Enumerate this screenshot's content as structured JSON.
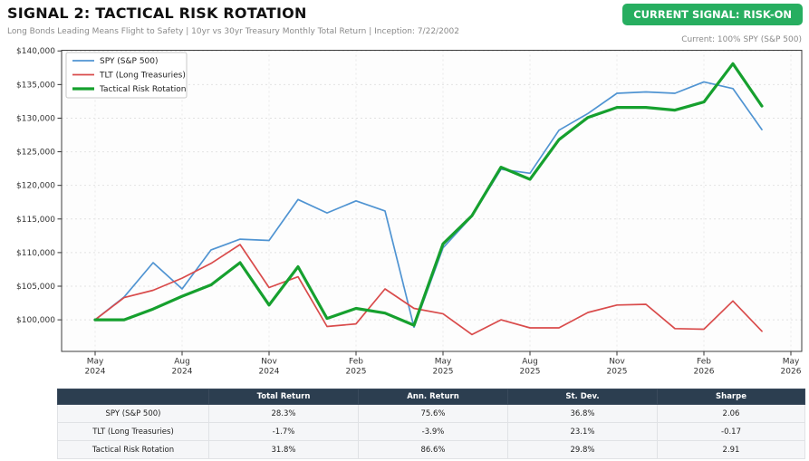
{
  "header": {
    "title": "SIGNAL 2: TACTICAL RISK ROTATION",
    "subtitle": "Long Bonds Leading Means Flight to Safety | 10yr vs 30yr Treasury Monthly Total Return | Inception: 7/22/2002",
    "badge": "CURRENT SIGNAL: RISK-ON",
    "badge_color": "#27ae60",
    "current_note": "Current: 100% SPY (S&P 500)"
  },
  "chart_data": {
    "type": "line",
    "x": [
      "May 2024",
      "Jun 2024",
      "Jul 2024",
      "Aug 2024",
      "Sep 2024",
      "Oct 2024",
      "Nov 2024",
      "Dec 2024",
      "Jan 2025",
      "Feb 2025",
      "Mar 2025",
      "Apr 2025",
      "May 2025",
      "Jun 2025",
      "Jul 2025",
      "Aug 2025",
      "Sep 2025",
      "Oct 2025",
      "Nov 2025",
      "Dec 2025",
      "Jan 2026",
      "Feb 2026",
      "Mar 2026",
      "Apr 2026"
    ],
    "series": [
      {
        "name": "SPY (S&P 500)",
        "color": "#5094d2",
        "width": 1.7,
        "values": [
          100000,
          103400,
          108500,
          104600,
          110400,
          112000,
          111800,
          117900,
          115900,
          117700,
          116200,
          98900,
          110700,
          115400,
          122400,
          121800,
          128200,
          130700,
          133700,
          133900,
          133700,
          135400,
          134400,
          128300
        ]
      },
      {
        "name": "TLT (Long Treasuries)",
        "color": "#d94b4b",
        "width": 1.7,
        "values": [
          100000,
          103300,
          104400,
          106200,
          108400,
          111200,
          104800,
          106400,
          99000,
          99400,
          104600,
          101700,
          100900,
          97800,
          100000,
          98800,
          98800,
          101100,
          102200,
          102300,
          98700,
          98600,
          102800,
          98300
        ]
      },
      {
        "name": "Tactical Risk Rotation",
        "color": "#16a02e",
        "width": 3.2,
        "values": [
          100000,
          100000,
          101600,
          103500,
          105200,
          108500,
          102200,
          107900,
          100200,
          101700,
          101000,
          99200,
          111300,
          115500,
          122700,
          120900,
          126800,
          130100,
          131600,
          131600,
          131200,
          132400,
          138100,
          131800
        ]
      }
    ],
    "y_tick_labels": [
      "$100,000",
      "$105,000",
      "$110,000",
      "$115,000",
      "$120,000",
      "$125,000",
      "$130,000",
      "$135,000",
      "$140,000"
    ],
    "y_tick_values": [
      100000,
      105000,
      110000,
      115000,
      120000,
      125000,
      130000,
      135000,
      140000
    ],
    "x_tick_labels": [
      [
        "May",
        "2024"
      ],
      [
        "Aug",
        "2024"
      ],
      [
        "Nov",
        "2024"
      ],
      [
        "Feb",
        "2025"
      ],
      [
        "May",
        "2025"
      ],
      [
        "Aug",
        "2025"
      ],
      [
        "Nov",
        "2025"
      ],
      [
        "Feb",
        "2026"
      ],
      [
        "May",
        "2026"
      ]
    ],
    "x_tick_step_months": 3,
    "ylim": [
      95300,
      140100
    ],
    "grid": true,
    "legend_position": "upper left"
  },
  "table": {
    "headers": [
      "",
      "Total Return",
      "Ann. Return",
      "St. Dev.",
      "Sharpe"
    ],
    "rows": [
      {
        "label": "SPY (S&P 500)",
        "values": [
          "28.3%",
          "75.6%",
          "36.8%",
          "2.06"
        ]
      },
      {
        "label": "TLT (Long Treasuries)",
        "values": [
          "-1.7%",
          "-3.9%",
          "23.1%",
          "-0.17"
        ]
      },
      {
        "label": "Tactical Risk Rotation",
        "values": [
          "31.8%",
          "86.6%",
          "29.8%",
          "2.91"
        ]
      }
    ]
  }
}
